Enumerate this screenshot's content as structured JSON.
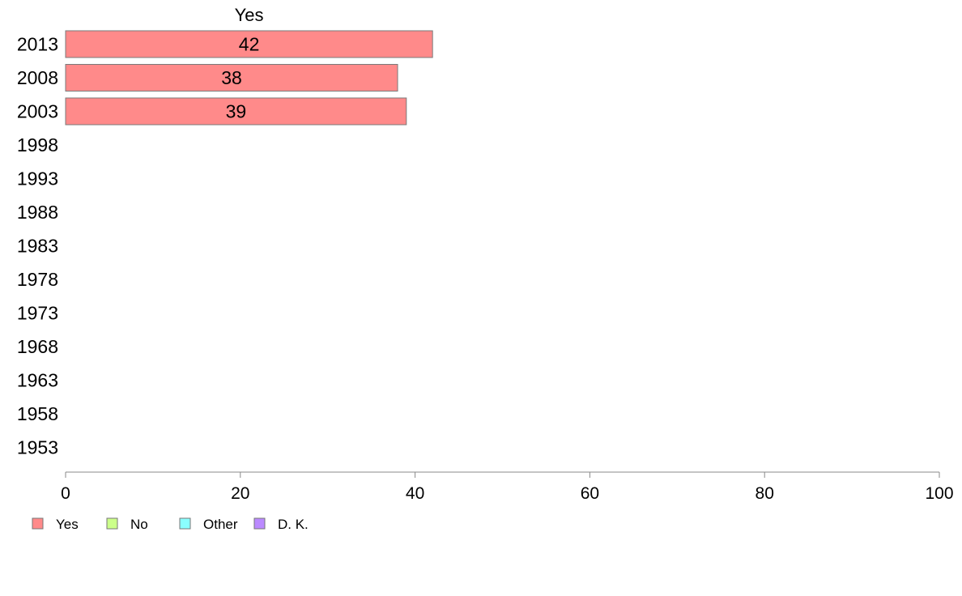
{
  "chart_data": {
    "type": "bar",
    "orientation": "horizontal",
    "stacked": true,
    "categories": [
      "2013",
      "2008",
      "2003",
      "1998",
      "1993",
      "1988",
      "1983",
      "1978",
      "1973",
      "1968",
      "1963",
      "1958",
      "1953"
    ],
    "series": [
      {
        "name": "Yes",
        "color": "#ff8a8a",
        "values": [
          42,
          38,
          39,
          null,
          null,
          null,
          null,
          null,
          null,
          null,
          null,
          null,
          null
        ]
      },
      {
        "name": "No",
        "color": "#ccff8a",
        "values": [
          null,
          null,
          null,
          null,
          null,
          null,
          null,
          null,
          null,
          null,
          null,
          null,
          null
        ]
      },
      {
        "name": "Other",
        "color": "#8affff",
        "values": [
          null,
          null,
          null,
          null,
          null,
          null,
          null,
          null,
          null,
          null,
          null,
          null,
          null
        ]
      },
      {
        "name": "D. K.",
        "color": "#bb8aff",
        "values": [
          null,
          null,
          null,
          null,
          null,
          null,
          null,
          null,
          null,
          null,
          null,
          null,
          null
        ]
      }
    ],
    "segment_header": "Yes",
    "xlim": [
      0,
      100
    ],
    "xticks": [
      0,
      20,
      40,
      60,
      80,
      100
    ],
    "grid": false,
    "legend_position": "bottom-left"
  }
}
